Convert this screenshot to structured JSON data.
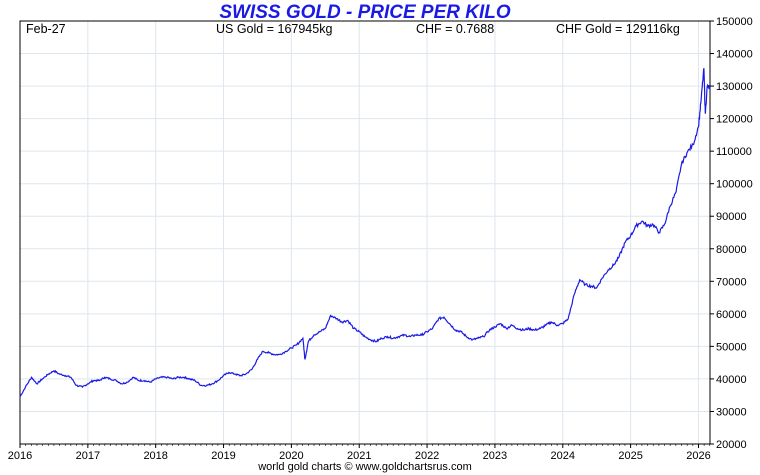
{
  "header": {
    "title": "SWISS GOLD - PRICE PER KILO",
    "date_label": "Feb-27",
    "us_gold": "US Gold = 167945kg",
    "chf_rate": "CHF = 0.7688",
    "chf_gold": "CHF Gold = 129116kg"
  },
  "footer": {
    "credit": "world gold charts © www.goldchartsrus.com"
  },
  "colors": {
    "line": "#1a1ae6",
    "title": "#1a1ae6",
    "grid": "#dde6ee"
  },
  "chart_data": {
    "type": "line",
    "title": "SWISS GOLD - PRICE PER KILO",
    "xlabel": "",
    "ylabel": "",
    "xlim": [
      2016.0,
      2026.17
    ],
    "ylim": [
      20000,
      150000
    ],
    "x_ticks": [
      "2016",
      "2017",
      "2018",
      "2019",
      "2020",
      "2021",
      "2022",
      "2023",
      "2024",
      "2025",
      "2026"
    ],
    "y_ticks": [
      "20000",
      "30000",
      "40000",
      "50000",
      "60000",
      "70000",
      "80000",
      "90000",
      "100000",
      "110000",
      "120000",
      "130000",
      "140000",
      "150000"
    ],
    "grid": true,
    "legend": "none",
    "series": [
      {
        "name": "",
        "x": [
          2016.0,
          2016.08,
          2016.17,
          2016.25,
          2016.33,
          2016.42,
          2016.5,
          2016.58,
          2016.67,
          2016.75,
          2016.83,
          2016.92,
          2017.0,
          2017.08,
          2017.17,
          2017.25,
          2017.33,
          2017.42,
          2017.5,
          2017.58,
          2017.67,
          2017.75,
          2017.83,
          2017.92,
          2018.0,
          2018.08,
          2018.17,
          2018.25,
          2018.33,
          2018.42,
          2018.5,
          2018.58,
          2018.67,
          2018.75,
          2018.83,
          2018.92,
          2019.0,
          2019.08,
          2019.17,
          2019.25,
          2019.33,
          2019.42,
          2019.5,
          2019.58,
          2019.67,
          2019.75,
          2019.83,
          2019.92,
          2020.0,
          2020.08,
          2020.17,
          2020.2,
          2020.25,
          2020.33,
          2020.42,
          2020.5,
          2020.58,
          2020.67,
          2020.75,
          2020.83,
          2020.92,
          2021.0,
          2021.08,
          2021.17,
          2021.25,
          2021.33,
          2021.42,
          2021.5,
          2021.58,
          2021.67,
          2021.75,
          2021.83,
          2021.92,
          2022.0,
          2022.08,
          2022.17,
          2022.25,
          2022.33,
          2022.42,
          2022.5,
          2022.58,
          2022.67,
          2022.75,
          2022.83,
          2022.92,
          2023.0,
          2023.08,
          2023.17,
          2023.25,
          2023.33,
          2023.42,
          2023.5,
          2023.58,
          2023.67,
          2023.75,
          2023.83,
          2023.92,
          2024.0,
          2024.08,
          2024.17,
          2024.25,
          2024.33,
          2024.42,
          2024.5,
          2024.58,
          2024.67,
          2024.75,
          2024.83,
          2024.92,
          2025.0,
          2025.08,
          2025.17,
          2025.25,
          2025.33,
          2025.42,
          2025.5,
          2025.58,
          2025.67,
          2025.75,
          2025.83,
          2025.92,
          2026.0,
          2026.04,
          2026.08,
          2026.1,
          2026.13,
          2026.17
        ],
        "values": [
          34500,
          37500,
          40500,
          38500,
          40000,
          41500,
          42500,
          41500,
          41000,
          40500,
          38000,
          37500,
          38500,
          39500,
          39500,
          40500,
          40000,
          39500,
          38500,
          39000,
          40500,
          39500,
          39500,
          39000,
          40000,
          40500,
          40500,
          40000,
          40500,
          40500,
          40000,
          39500,
          38000,
          38000,
          38500,
          39500,
          41000,
          42000,
          41500,
          41000,
          41500,
          43000,
          46000,
          48500,
          48000,
          47500,
          47500,
          48500,
          49500,
          50500,
          52500,
          46000,
          51500,
          53500,
          54500,
          55500,
          59500,
          58500,
          57500,
          58000,
          55500,
          54500,
          53000,
          52000,
          51500,
          52500,
          53000,
          52500,
          53000,
          53500,
          53000,
          53500,
          53500,
          54500,
          55500,
          58500,
          59000,
          57000,
          55000,
          54500,
          53000,
          52000,
          52500,
          53000,
          55000,
          56000,
          57000,
          55500,
          56500,
          55500,
          55000,
          55500,
          55000,
          55500,
          56500,
          57500,
          56500,
          57000,
          58500,
          66000,
          70500,
          69000,
          68500,
          68000,
          71000,
          73500,
          75000,
          77500,
          82000,
          84000,
          87000,
          88500,
          87000,
          87500,
          85000,
          87500,
          93000,
          97500,
          106000,
          109500,
          112000,
          117500,
          126000,
          135500,
          121500,
          130000,
          129116
        ]
      }
    ]
  }
}
